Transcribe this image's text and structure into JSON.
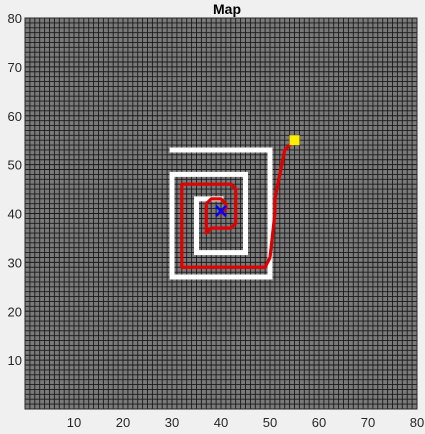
{
  "figure": {
    "title": "Map"
  },
  "chart_data": {
    "type": "line",
    "title": "Map",
    "xlabel": "",
    "ylabel": "",
    "xlim": [
      0,
      80
    ],
    "ylim": [
      0,
      80
    ],
    "xticks": [
      10,
      20,
      30,
      40,
      50,
      60,
      70,
      80
    ],
    "yticks": [
      10,
      20,
      30,
      40,
      50,
      60,
      70,
      80
    ],
    "grid": true,
    "grid_cell_size": 1,
    "background_color": "#7a7a7a",
    "grid_color": "#1a1a1a",
    "series": [
      {
        "role": "obstacle-spiral",
        "color": "#ffffff",
        "points": [
          [
            30,
            53
          ],
          [
            50,
            53
          ],
          [
            50,
            27
          ],
          [
            30,
            27
          ],
          [
            30,
            48
          ],
          [
            45,
            48
          ],
          [
            45,
            32
          ],
          [
            35,
            32
          ],
          [
            35,
            43
          ],
          [
            40,
            43
          ]
        ]
      },
      {
        "role": "path",
        "color": "#e00000",
        "points": [
          [
            55,
            55
          ],
          [
            53,
            53
          ],
          [
            52,
            48
          ],
          [
            51,
            43
          ],
          [
            51,
            40
          ],
          [
            50,
            31
          ],
          [
            49,
            29
          ],
          [
            32,
            29
          ],
          [
            32,
            46
          ],
          [
            42,
            46
          ],
          [
            43,
            45
          ],
          [
            43,
            38
          ],
          [
            42,
            37
          ],
          [
            38,
            37
          ],
          [
            37,
            36
          ],
          [
            37,
            42
          ],
          [
            38,
            43
          ],
          [
            40,
            43
          ],
          [
            41,
            42
          ],
          [
            41,
            41
          ],
          [
            40,
            40
          ],
          [
            40,
            40
          ]
        ]
      }
    ],
    "markers": [
      {
        "role": "goal",
        "shape": "square",
        "color": "#ffee00",
        "x": 55,
        "y": 55
      },
      {
        "role": "start",
        "shape": "x",
        "color": "#0000ff",
        "x": 40,
        "y": 40.5
      }
    ]
  }
}
